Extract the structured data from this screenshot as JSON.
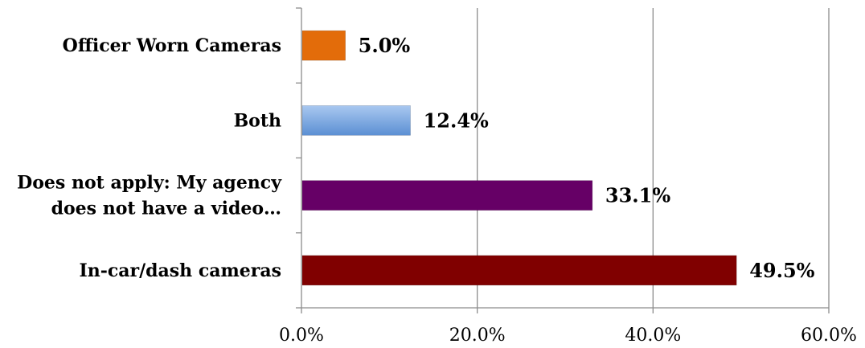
{
  "chart_data": {
    "type": "bar",
    "orientation": "horizontal",
    "categories": [
      "Officer Worn Cameras",
      "Both",
      [
        "Does not apply: My agency",
        "does not have a video…"
      ],
      "In-car/dash cameras"
    ],
    "values": [
      5.0,
      12.4,
      33.1,
      49.5
    ],
    "data_labels": [
      "5.0%",
      "12.4%",
      "33.1%",
      "49.5%"
    ],
    "colors": [
      "#e36c0a",
      "#8db3e2",
      "#660066",
      "#800000"
    ],
    "xlim": [
      0,
      60
    ],
    "xticks": [
      0,
      20,
      40,
      60
    ],
    "xtick_labels": [
      "0.0%",
      "20.0%",
      "40.0%",
      "60.0%"
    ],
    "grid": true,
    "legend": false
  }
}
